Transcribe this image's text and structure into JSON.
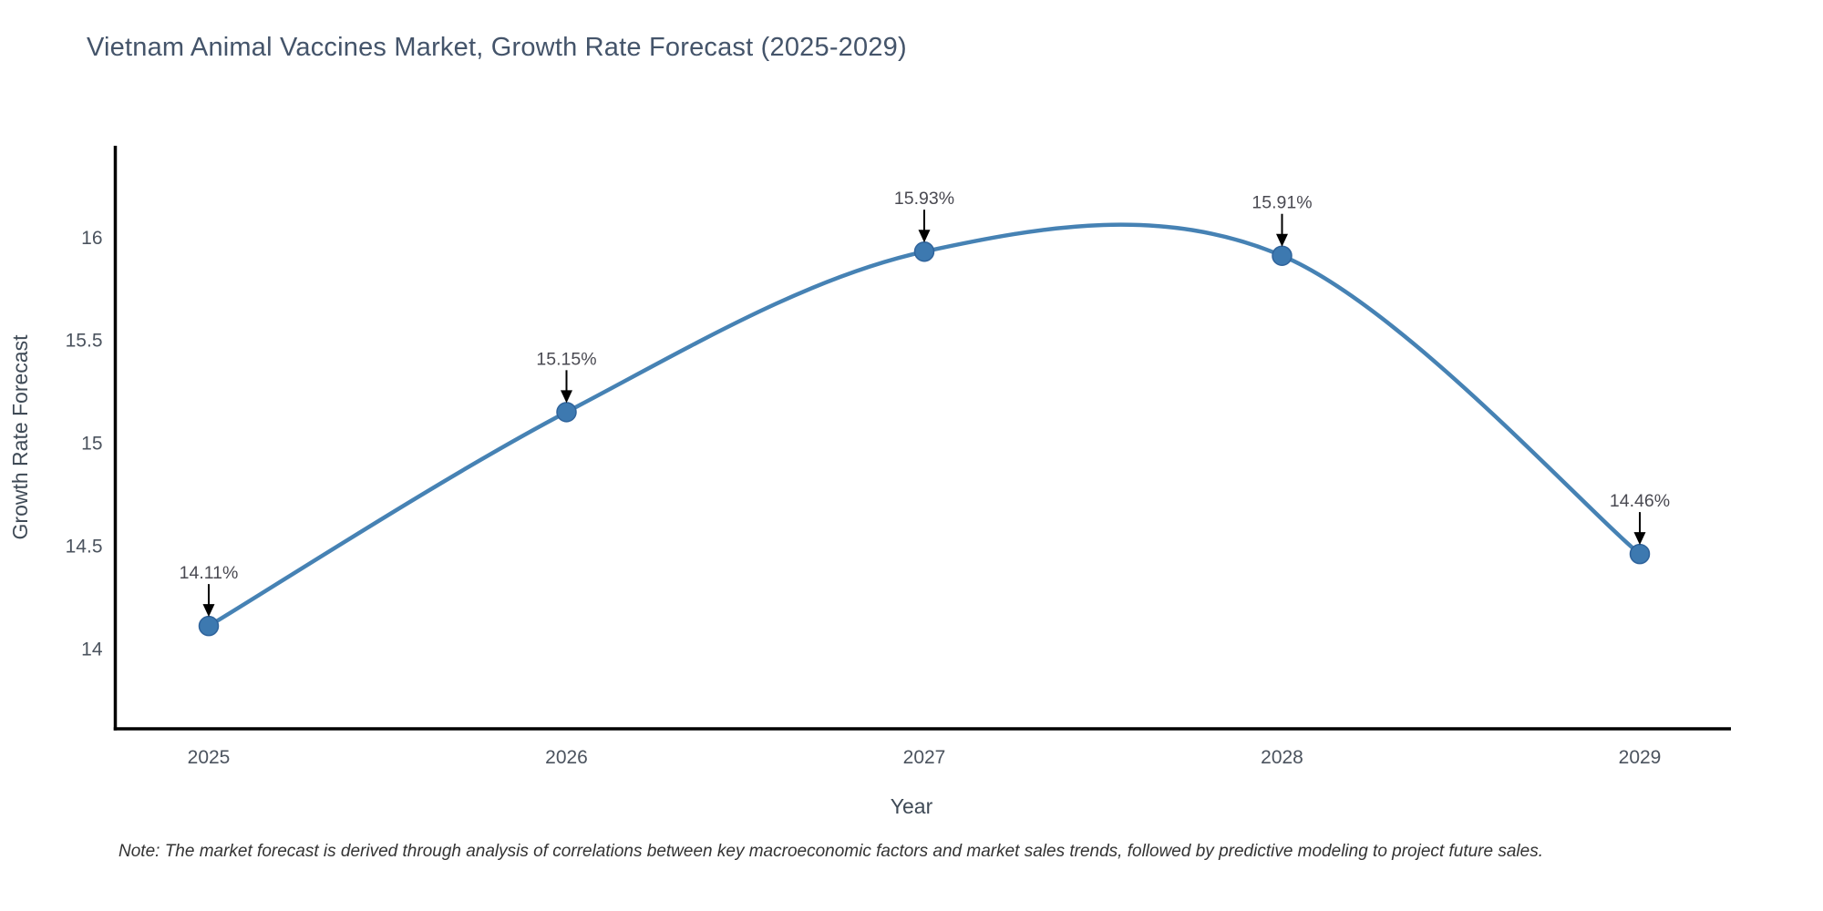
{
  "page": {
    "title": "Vietnam Animal Vaccines Market, Growth Rate Forecast (2025-2029)",
    "note": "Note: The market forecast is derived through analysis of correlations between key macroeconomic factors and market sales trends, followed by predictive modeling to project future sales."
  },
  "colors": {
    "line": "#4682b4",
    "marker_fill": "#3d79b0",
    "marker_stroke": "#2f639b",
    "axis_line": "#000000",
    "title_text": "#44546a",
    "tick_text": "#4b535e",
    "axis_title_text": "#3f4a56",
    "annotation_text": "#4a4a52",
    "annotation_arrow": "#000000",
    "note_text": "#333333"
  },
  "chart_data": {
    "type": "line",
    "title": "Vietnam Animal Vaccines Market, Growth Rate Forecast (2025-2029)",
    "categories": [
      "2025",
      "2026",
      "2027",
      "2028",
      "2029"
    ],
    "x": [
      2025,
      2026,
      2027,
      2028,
      2029
    ],
    "series": [
      {
        "name": "Growth Rate Forecast",
        "values": [
          14.11,
          15.15,
          15.93,
          15.91,
          14.46
        ]
      }
    ],
    "annotations": [
      "14.11%",
      "15.15%",
      "15.93%",
      "15.91%",
      "14.46%"
    ],
    "xlabel": "Year",
    "ylabel": "Growth Rate Forecast",
    "yticks": [
      14,
      14.5,
      15,
      15.5,
      16
    ],
    "ylim": [
      13.6,
      16.45
    ],
    "xlim": [
      2024.74,
      2029.26
    ],
    "line_shape": "spline",
    "grid": false,
    "legend_position": "none",
    "markers": true
  }
}
